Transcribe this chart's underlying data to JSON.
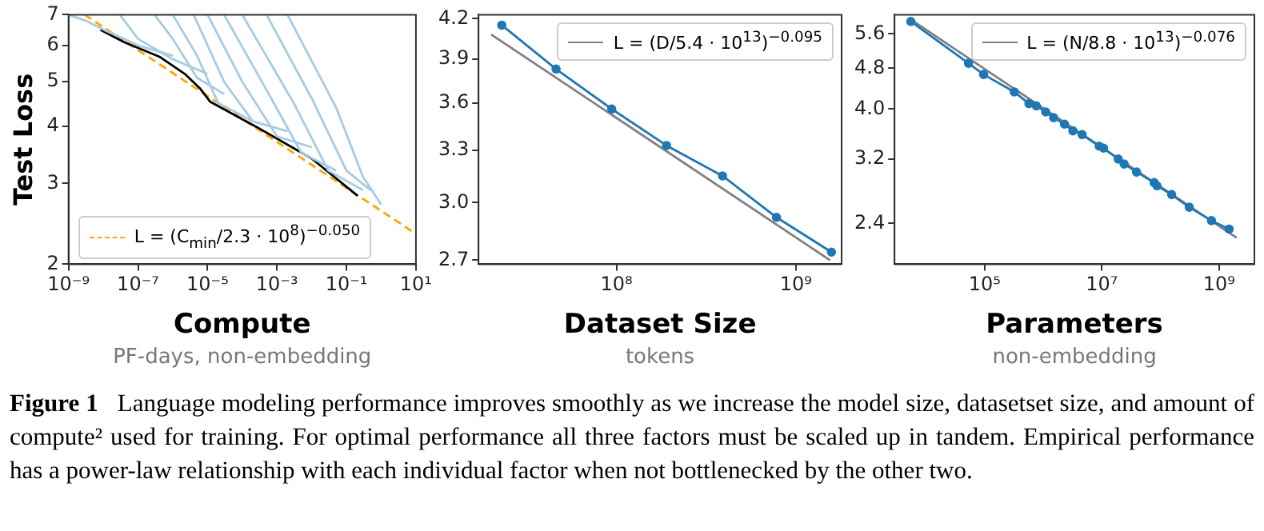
{
  "chart_data": [
    {
      "type": "line",
      "xlabel": "Compute",
      "subtitle": "PF-days, non-embedding",
      "ylabel": "Test Loss",
      "log": "xy",
      "xlim": [
        1e-09,
        10
      ],
      "ylim": [
        2,
        7
      ],
      "xticks": [
        {
          "value": 1e-09,
          "label": "10⁻⁹"
        },
        {
          "value": 1e-07,
          "label": "10⁻⁷"
        },
        {
          "value": 1e-05,
          "label": "10⁻⁵"
        },
        {
          "value": 0.001,
          "label": "10⁻³"
        },
        {
          "value": 0.1,
          "label": "10⁻¹"
        },
        {
          "value": 10,
          "label": "10¹"
        }
      ],
      "yticks": [
        2,
        3,
        4,
        5,
        6,
        7
      ],
      "grid": false,
      "legend": "bottom left",
      "marker": "none",
      "annotations": [
        "Figure 1",
        "Language modeling performance improves smoothly as we increase the model size, datasetset size, and amount of compute² used for training. For optimal performance all three factors must be scaled up in tandem. Empirical performance has a power-law relationship with each individual factor when not bottlenecked by the other two."
      ],
      "series": [
        {
          "color": "#a6cbe3",
          "x": [
            1e-09,
            3e-09,
            1e-08,
            1e-07,
            1e-06
          ],
          "values": [
            7,
            6.8,
            6.5,
            6.0,
            5.7
          ]
        },
        {
          "color": "#a6cbe3",
          "x": [
            3e-08,
            1e-07,
            1e-06,
            1e-05
          ],
          "values": [
            7,
            6.2,
            5.6,
            5.2
          ]
        },
        {
          "color": "#a6cbe3",
          "x": [
            3e-07,
            1e-06,
            5e-06,
            3e-05
          ],
          "values": [
            7,
            6.2,
            5.1,
            4.7
          ]
        },
        {
          "color": "#a6cbe3",
          "x": [
            1e-06,
            5e-06,
            2e-05,
            0.0002
          ],
          "values": [
            7,
            5.7,
            4.5,
            4.1
          ]
        },
        {
          "color": "#a6cbe3",
          "x": [
            4e-06,
            3e-05,
            0.0002,
            0.002
          ],
          "values": [
            7,
            5.0,
            4.1,
            3.9
          ]
        },
        {
          "color": "#a6cbe3",
          "x": [
            1e-05,
            0.0001,
            0.001,
            0.01
          ],
          "values": [
            7,
            5.0,
            3.8,
            3.6
          ]
        },
        {
          "color": "#a6cbe3",
          "x": [
            3e-05,
            0.0005,
            0.005,
            0.05
          ],
          "values": [
            7,
            4.8,
            3.5,
            3.2
          ]
        },
        {
          "color": "#a6cbe3",
          "x": [
            0.0001,
            0.003,
            0.03,
            0.3
          ],
          "values": [
            7,
            4.5,
            3.2,
            2.9
          ]
        },
        {
          "color": "#a6cbe3",
          "x": [
            0.0005,
            0.01,
            0.1,
            0.5
          ],
          "values": [
            7,
            4.6,
            3.2,
            2.9
          ]
        },
        {
          "color": "#a6cbe3",
          "x": [
            0.002,
            0.05,
            0.3,
            1
          ],
          "values": [
            7,
            4.4,
            3.1,
            2.7
          ]
        },
        {
          "color": "#000000",
          "x": [
            8.3e-09,
            4e-08,
            4.3e-07,
            2.3e-06,
            6.3e-06,
            1.2e-05,
            0.00025,
            0.01,
            0.21
          ],
          "values": [
            6.49,
            6.1,
            5.66,
            5.19,
            4.82,
            4.52,
            3.99,
            3.4,
            2.82
          ]
        },
        {
          "name": "L = (C$_{min}$/2.3 · 10$^{8}$)$^{−0.050}$",
          "color": "#ffa500",
          "line_style": "dashed",
          "x": [
            2.9e-09,
            10
          ],
          "values": [
            7,
            2.33
          ]
        }
      ]
    },
    {
      "type": "line",
      "xlabel": "Dataset Size",
      "subtitle": "tokens",
      "log": "xy",
      "xlim": [
        17000000.0,
        1800000000.0
      ],
      "ylim": [
        2.68,
        4.23
      ],
      "xticks": [
        {
          "value": 100000000.0,
          "label": "10⁸"
        },
        {
          "value": 1000000000.0,
          "label": "10⁹"
        }
      ],
      "yticks": [
        {
          "value": 2.7,
          "label": "2.7"
        },
        {
          "value": 3,
          "label": "3.0"
        },
        {
          "value": 3.3,
          "label": "3.3"
        },
        {
          "value": 3.6,
          "label": "3.6"
        },
        {
          "value": 3.9,
          "label": "3.9"
        },
        {
          "value": 4.2,
          "label": "4.2"
        }
      ],
      "grid": false,
      "legend": "top right",
      "series": [
        {
          "color": "#1f77b4",
          "marker": "circle",
          "x": [
            22900000.0,
            46000000.0,
            94000000.0,
            190000000.0,
            390000000.0,
            780000000.0,
            1580000000.0
          ],
          "values": [
            4.15,
            3.83,
            3.56,
            3.33,
            3.15,
            2.92,
            2.74
          ]
        },
        {
          "name": "L = (D/5.4 · 10$^{13}$)$^{−0.095}$",
          "color": "#808080",
          "marker": "none",
          "x": [
            20000000.0,
            1550000000.0
          ],
          "values": [
            4.08,
            2.7
          ]
        }
      ]
    },
    {
      "type": "line",
      "xlabel": "Parameters",
      "subtitle": "non-embedding",
      "log": "xy",
      "xlim": [
        2900.0,
        4000000000.0
      ],
      "ylim": [
        2.0,
        6.1
      ],
      "xticks": [
        {
          "value": 100000.0,
          "label": "10⁵"
        },
        {
          "value": 10000000.0,
          "label": "10⁷"
        },
        {
          "value": 1000000000.0,
          "label": "10⁹"
        }
      ],
      "yticks": [
        2.4,
        3.2,
        {
          "value": 4,
          "label": "4.0"
        },
        4.8,
        5.6
      ],
      "grid": false,
      "legend": "top right",
      "series": [
        {
          "color": "#1f77b4",
          "marker": "circle",
          "x": [
            5500.0,
            53000.0,
            96000.0,
            320000.0,
            570000.0,
            760000.0,
            1100000.0,
            1500000.0,
            2300000.0,
            3200000.0,
            4600000.0,
            9000000.0,
            10700000.0,
            19000000.0,
            24000000.0,
            39000000.0,
            78000000.0,
            87000000.0,
            155000000.0,
            310000000.0,
            740000000.0,
            1480000000.0
          ],
          "values": [
            5.92,
            4.91,
            4.67,
            4.32,
            4.1,
            4.06,
            3.95,
            3.85,
            3.74,
            3.63,
            3.57,
            3.39,
            3.36,
            3.2,
            3.13,
            3.02,
            2.88,
            2.84,
            2.73,
            2.58,
            2.43,
            2.34
          ]
        },
        {
          "name": "L = (N/8.8 · 10$^{13}$)$^{−0.076}$",
          "color": "#808080",
          "marker": "none",
          "x": [
            5500.0,
            2000000000.0
          ],
          "values": [
            5.97,
            2.25
          ]
        }
      ]
    }
  ]
}
